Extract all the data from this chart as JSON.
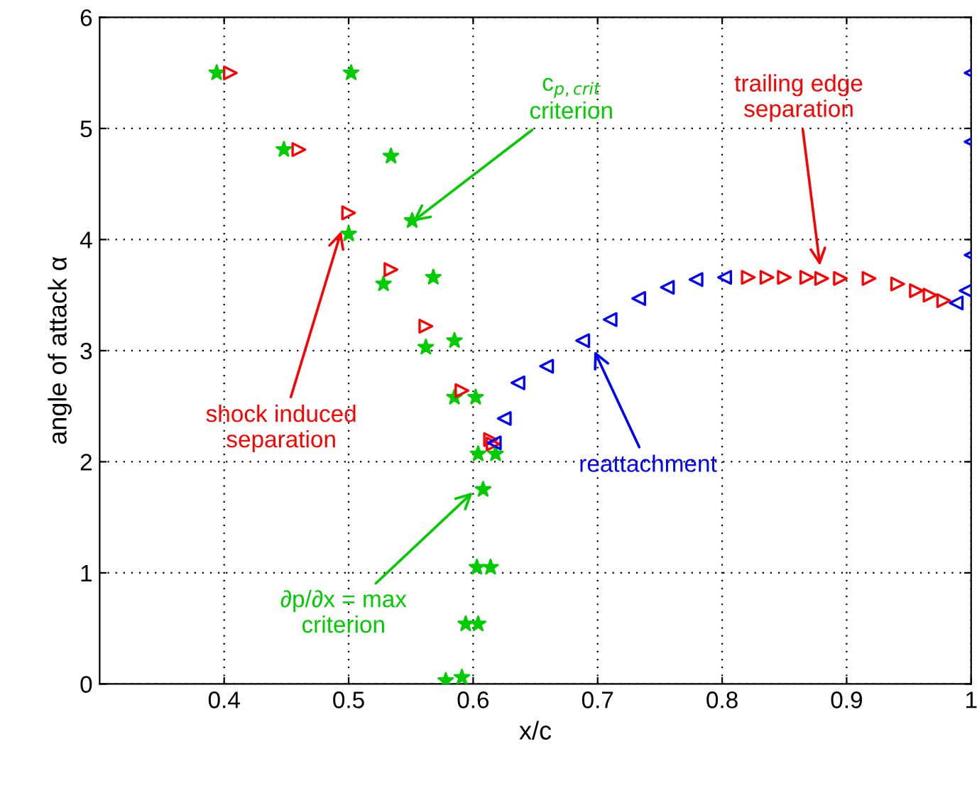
{
  "chart_data": {
    "type": "scatter",
    "xlabel": "x/c",
    "ylabel": "angle of attack α",
    "xlim": [
      0.3,
      1
    ],
    "ylim": [
      0,
      6
    ],
    "xticks": [
      0.4,
      0.5,
      0.6,
      0.7,
      0.8,
      0.9,
      1
    ],
    "yticks": [
      0,
      1,
      2,
      3,
      4,
      5,
      6
    ],
    "grid": true,
    "series": [
      {
        "color": "#00cc00",
        "marker": "star",
        "x": [
          0.394,
          0.448,
          0.5,
          0.528,
          0.562,
          0.585,
          0.604,
          0.608,
          0.603,
          0.594,
          0.578
        ],
        "values": [
          5.5,
          4.81,
          4.05,
          3.6,
          3.03,
          2.58,
          2.07,
          1.75,
          1.05,
          0.54,
          0.03
        ]
      },
      {
        "color": "#00cc00",
        "marker": "star",
        "x": [
          0.502,
          0.534,
          0.551,
          0.568,
          0.585,
          0.602,
          0.618,
          0.614,
          0.604,
          0.591
        ],
        "values": [
          5.5,
          4.75,
          4.17,
          3.66,
          3.09,
          2.58,
          2.07,
          1.05,
          0.54,
          0.06
        ]
      },
      {
        "color": "#ff0000",
        "marker": "triangle",
        "x": [
          0.405,
          0.46,
          0.5,
          0.534,
          0.562,
          0.591,
          0.614,
          0.616
        ],
        "values": [
          5.5,
          4.81,
          4.24,
          3.73,
          3.22,
          2.64,
          2.2,
          2.16
        ]
      },
      {
        "color": "#0000ff",
        "marker": "triangle",
        "x": [
          0.617,
          0.625,
          0.636,
          0.659,
          0.688,
          0.71,
          0.733,
          0.756,
          0.779,
          0.802,
          0.988,
          0.996,
          1.0,
          1.0,
          1.0
        ],
        "values": [
          2.17,
          2.39,
          2.71,
          2.86,
          3.09,
          3.28,
          3.47,
          3.57,
          3.64,
          3.66,
          3.43,
          3.54,
          3.86,
          4.88,
          5.5
        ]
      },
      {
        "color": "#ff0000",
        "marker": "triangle",
        "x": [
          0.821,
          0.836,
          0.85,
          0.868,
          0.88,
          0.895,
          0.918,
          0.941,
          0.956,
          0.967,
          0.978
        ],
        "values": [
          3.66,
          3.66,
          3.66,
          3.66,
          3.65,
          3.65,
          3.65,
          3.6,
          3.54,
          3.5,
          3.45
        ]
      }
    ],
    "annotations": [
      {
        "text": "∂p/∂x = max\ncriterion",
        "x": 0.602,
        "y": 1.75
      },
      {
        "text": "c$_{p,crit}$\ncriterion",
        "x": 0.549,
        "y": 4.14
      },
      {
        "text": "shock induced\nseparation",
        "x": 0.495,
        "y": 4.11
      },
      {
        "text": "reattachment",
        "x": 0.696,
        "y": 3.03
      },
      {
        "text": "trailing edge\nseparation",
        "x": 0.879,
        "y": 3.73
      }
    ]
  }
}
